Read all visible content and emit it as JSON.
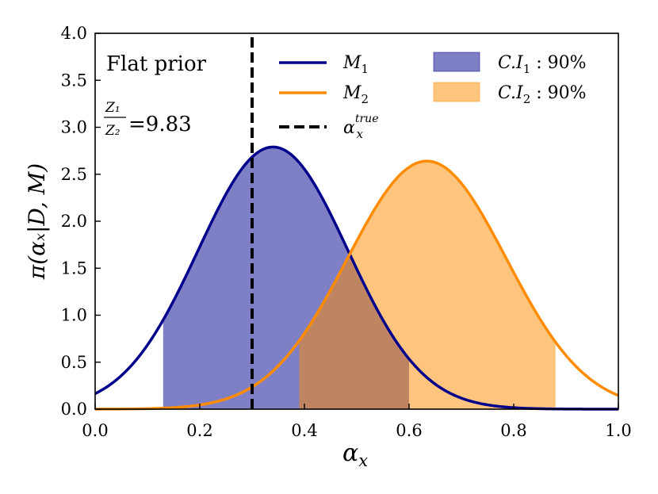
{
  "chart_data": {
    "type": "line",
    "xlabel_main": "α",
    "xlabel_sub": "x",
    "ylabel": "π(αₓ|D, M)",
    "xlim": [
      0.0,
      1.0
    ],
    "ylim": [
      0.0,
      4.0
    ],
    "xticks": [
      "0.0",
      "0.2",
      "0.4",
      "0.6",
      "0.8",
      "1.0"
    ],
    "yticks": [
      "0.0",
      "0.5",
      "1.0",
      "1.5",
      "2.0",
      "2.5",
      "3.0",
      "3.5",
      "4.0"
    ],
    "series": [
      {
        "name": "M1",
        "legend_main": "M",
        "legend_sub": "1",
        "color": "#00008b",
        "distribution": "normal",
        "mean": 0.34,
        "sd": 0.143,
        "peak": 2.79,
        "ci_label_main": "C.I",
        "ci_label_sub": "1",
        "ci_label_tail": " : 90%",
        "ci": [
          0.13,
          0.6
        ],
        "ci_color": "#00008b"
      },
      {
        "name": "M2",
        "legend_main": "M",
        "legend_sub": "2",
        "color": "#ff8c00",
        "distribution": "normal",
        "mean": 0.634,
        "sd": 0.152,
        "peak": 2.64,
        "ci_label_main": "C.I",
        "ci_label_sub": "2",
        "ci_label_tail": " : 90%",
        "ci": [
          0.39,
          0.88
        ],
        "ci_color": "#ff8c00"
      }
    ],
    "true_value": {
      "x": 0.3,
      "legend_main": "α",
      "legend_sub": "x",
      "legend_sup": "true"
    },
    "annotations": {
      "prior": "Flat prior",
      "ratio_num": "Z₁",
      "ratio_den": "Z₂",
      "ratio_value": "=9.83"
    }
  }
}
